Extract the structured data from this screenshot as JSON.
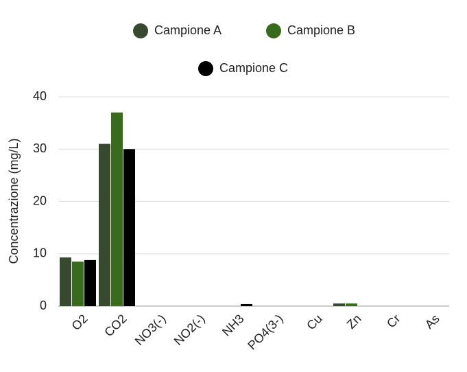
{
  "chart_data": {
    "type": "bar",
    "y_label": "Concentrazione (mg/L)",
    "categories": [
      "O2",
      "CO2",
      "NO3(-)",
      "NO2(-)",
      "NH3",
      "PO4(3-)",
      "Cu",
      "Zn",
      "Cr",
      "As"
    ],
    "series": [
      {
        "name": "Campione A",
        "color": "#374a30",
        "values": [
          9.3,
          31,
          0,
          0,
          0,
          0,
          0,
          0.5,
          0,
          0
        ]
      },
      {
        "name": "Campione B",
        "color": "#386b1c",
        "values": [
          8.5,
          37,
          0,
          0,
          0,
          0,
          0,
          0.5,
          0,
          0
        ]
      },
      {
        "name": "Campione C",
        "color": "#000000",
        "values": [
          8.8,
          30,
          0,
          0,
          0.4,
          0,
          0,
          0,
          0,
          0
        ]
      }
    ],
    "ylim": [
      0,
      40
    ],
    "yticks": [
      0,
      10,
      20,
      30,
      40
    ],
    "grid": true,
    "legend": "top"
  }
}
